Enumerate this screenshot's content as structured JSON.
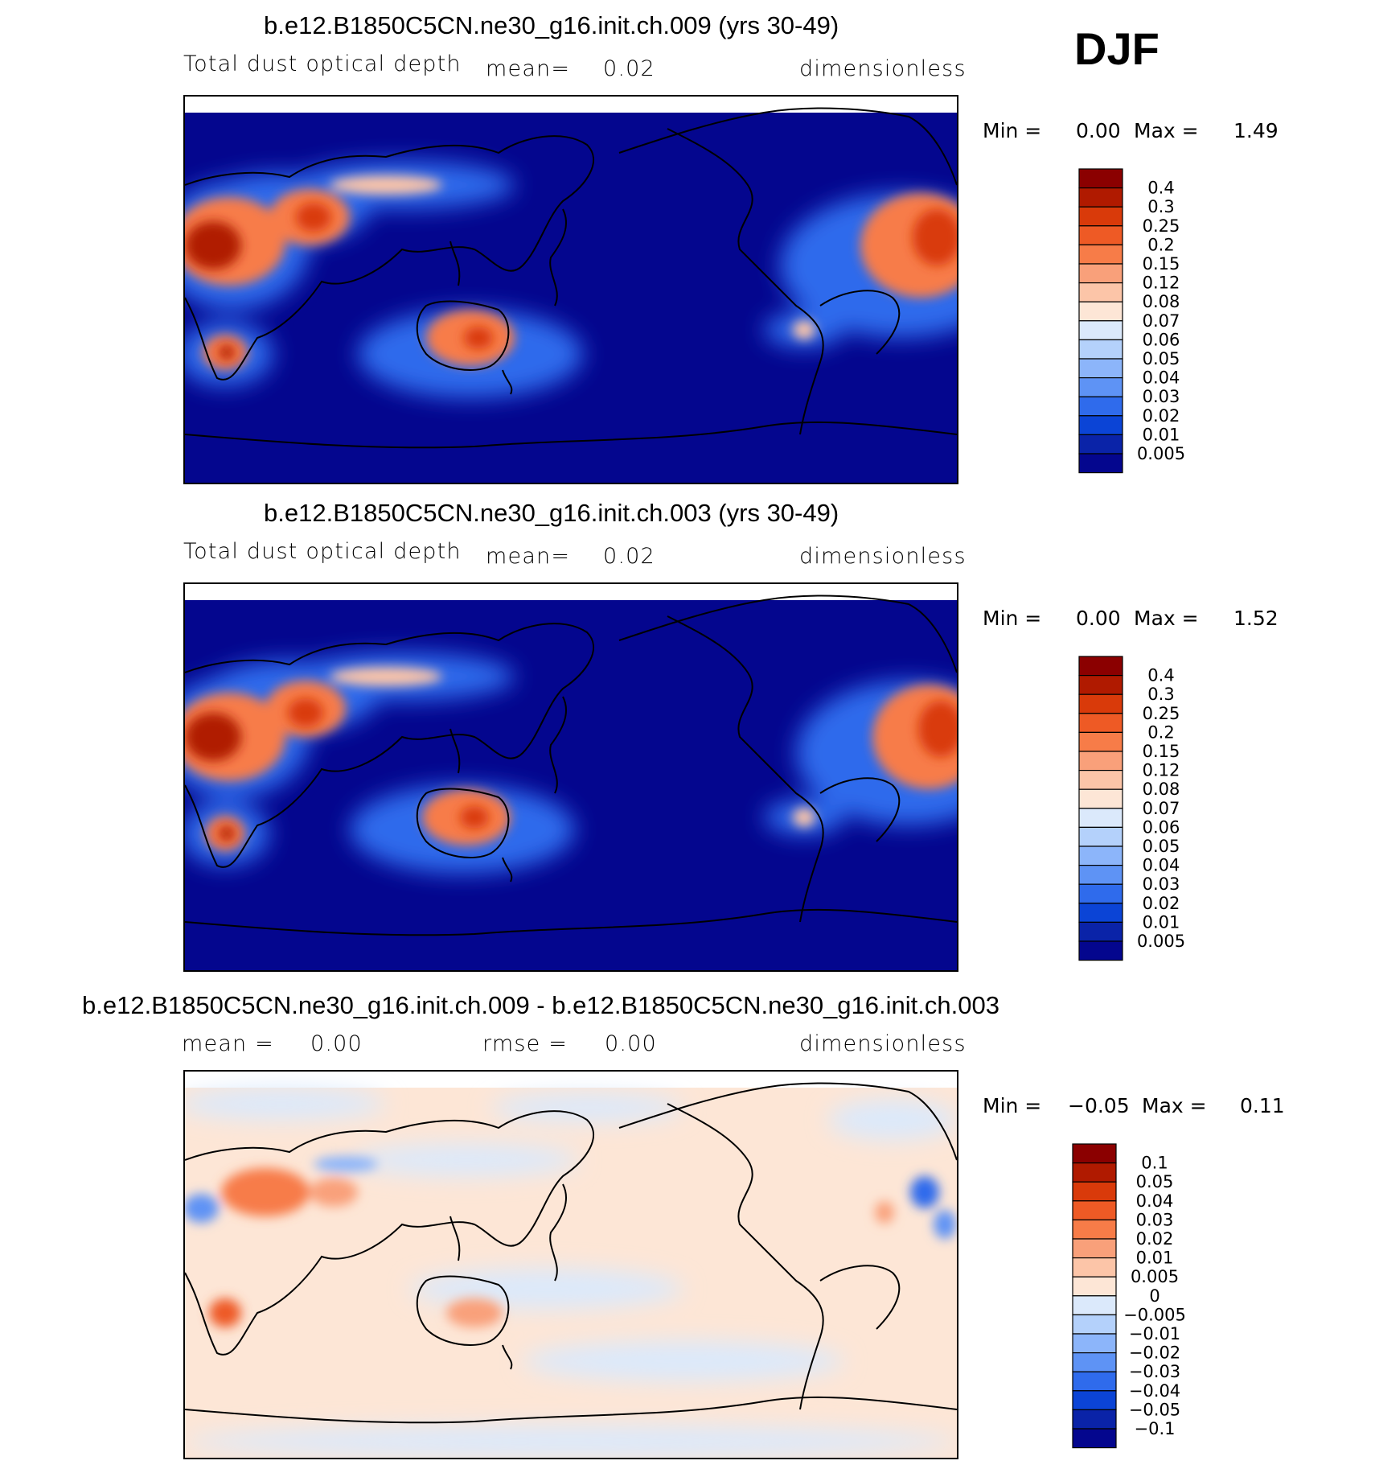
{
  "season": "DJF",
  "panels": [
    {
      "title": "b.e12.B1850C5CN.ne30_g16.init.ch.009 (yrs 30-49)",
      "variable": "Total dust optical depth",
      "stat1_label": "mean=",
      "stat1_value": "0.02",
      "units": "dimensionless",
      "min_label": "Min =",
      "min_value": "0.00",
      "max_label": "Max =",
      "max_value": "1.49",
      "colorbar": {
        "labels": [
          "0.4",
          "0.3",
          "0.25",
          "0.2",
          "0.15",
          "0.12",
          "0.08",
          "0.07",
          "0.06",
          "0.05",
          "0.04",
          "0.03",
          "0.02",
          "0.01",
          "0.005"
        ],
        "colors": [
          "#8b0000",
          "#b01a00",
          "#d93a0a",
          "#ee5a25",
          "#f77c48",
          "#f9a07a",
          "#fcc5a8",
          "#fde6d6",
          "#dbe9fb",
          "#b4d1fb",
          "#8cb5fa",
          "#5e93f5",
          "#2f6bec",
          "#0b44d6",
          "#0a23a8",
          "#04068e"
        ]
      }
    },
    {
      "title": "b.e12.B1850C5CN.ne30_g16.init.ch.003 (yrs 30-49)",
      "variable": "Total dust optical depth",
      "stat1_label": "mean=",
      "stat1_value": "0.02",
      "units": "dimensionless",
      "min_label": "Min =",
      "min_value": "0.00",
      "max_label": "Max =",
      "max_value": "1.52",
      "colorbar": {
        "labels": [
          "0.4",
          "0.3",
          "0.25",
          "0.2",
          "0.15",
          "0.12",
          "0.08",
          "0.07",
          "0.06",
          "0.05",
          "0.04",
          "0.03",
          "0.02",
          "0.01",
          "0.005"
        ],
        "colors": [
          "#8b0000",
          "#b01a00",
          "#d93a0a",
          "#ee5a25",
          "#f77c48",
          "#f9a07a",
          "#fcc5a8",
          "#fde6d6",
          "#dbe9fb",
          "#b4d1fb",
          "#8cb5fa",
          "#5e93f5",
          "#2f6bec",
          "#0b44d6",
          "#0a23a8",
          "#04068e"
        ]
      }
    },
    {
      "title": "b.e12.B1850C5CN.ne30_g16.init.ch.009 - b.e12.B1850C5CN.ne30_g16.init.ch.003",
      "stat1_label": "mean =",
      "stat1_value": "0.00",
      "stat2_label": "rmse =",
      "stat2_value": "0.00",
      "units": "dimensionless",
      "min_label": "Min =",
      "min_value": "−0.05",
      "max_label": "Max =",
      "max_value": "0.11",
      "colorbar": {
        "labels": [
          "0.1",
          "0.05",
          "0.04",
          "0.03",
          "0.02",
          "0.01",
          "0.005",
          "0",
          "−0.005",
          "−0.01",
          "−0.02",
          "−0.03",
          "−0.04",
          "−0.05",
          "−0.1"
        ],
        "colors": [
          "#8b0000",
          "#b01a00",
          "#d93a0a",
          "#ee5a25",
          "#f77c48",
          "#f9a07a",
          "#fcc5a8",
          "#fde6d6",
          "#dbe9fb",
          "#b4d1fb",
          "#8cb5fa",
          "#5e93f5",
          "#2f6bec",
          "#0b44d6",
          "#0a23a8",
          "#04068e"
        ]
      }
    }
  ]
}
